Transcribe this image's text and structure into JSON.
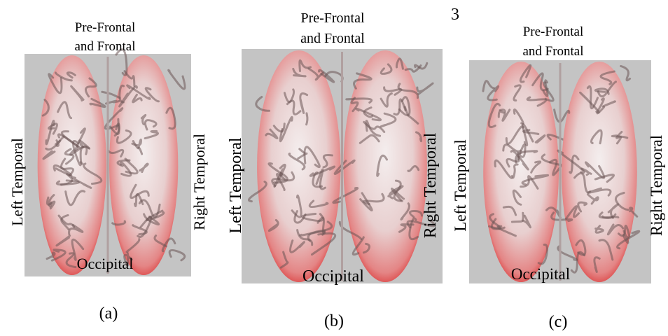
{
  "page_number": "3",
  "panels": [
    {
      "top_label": [
        "Pre-Frontal",
        "and Frontal"
      ],
      "left_label": "Left Temporal",
      "right_label": "Right Temporal",
      "bottom_label": "Occipital",
      "caption": "(a)"
    },
    {
      "top_label": [
        "Pre-Frontal",
        "and Frontal"
      ],
      "left_label": "Left Temporal",
      "right_label": "Right Temporal",
      "bottom_label": "Occipital",
      "caption": "(b)"
    },
    {
      "top_label": [
        "Pre-Frontal",
        "and Frontal"
      ],
      "left_label": "Left Temporal",
      "right_label": "Right Temporal",
      "bottom_label": "Occipital",
      "caption": "(c)"
    }
  ]
}
